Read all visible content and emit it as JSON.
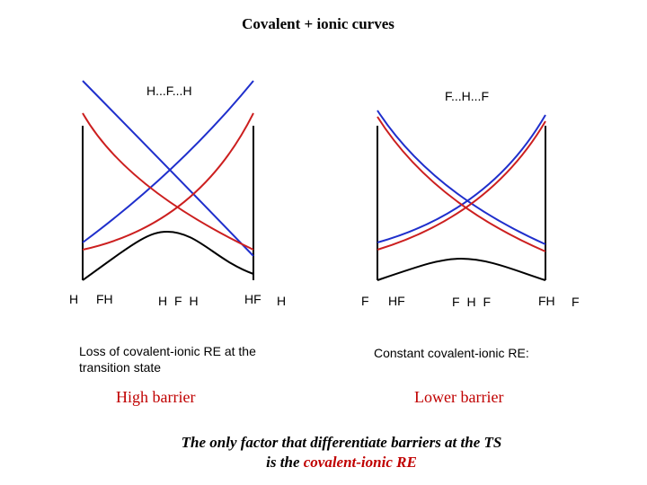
{
  "title": "Covalent + ionic curves",
  "left_panel": {
    "header": "H...F...H",
    "axis_labels": [
      "H",
      "FH",
      "H F H",
      "HF",
      "H"
    ],
    "caption_lines": [
      "Loss of covalent-ionic RE at the",
      "transition state"
    ],
    "barrier_label": "High barrier"
  },
  "right_panel": {
    "header": "F...H...F",
    "axis_labels": [
      "F",
      "HF",
      "F H F",
      "FH",
      "F"
    ],
    "caption": "Constant covalent-ionic RE:",
    "barrier_label": "Lower barrier"
  },
  "conclusion": {
    "line1": "The only factor that differentiate barriers at the TS",
    "line2_prefix": "is the ",
    "line2_highlight": "covalent-ionic RE"
  },
  "colors": {
    "covalent": "#1f2fcc",
    "ionic": "#cc1f1f",
    "ground": "#000000",
    "highlight": "#c00000"
  }
}
